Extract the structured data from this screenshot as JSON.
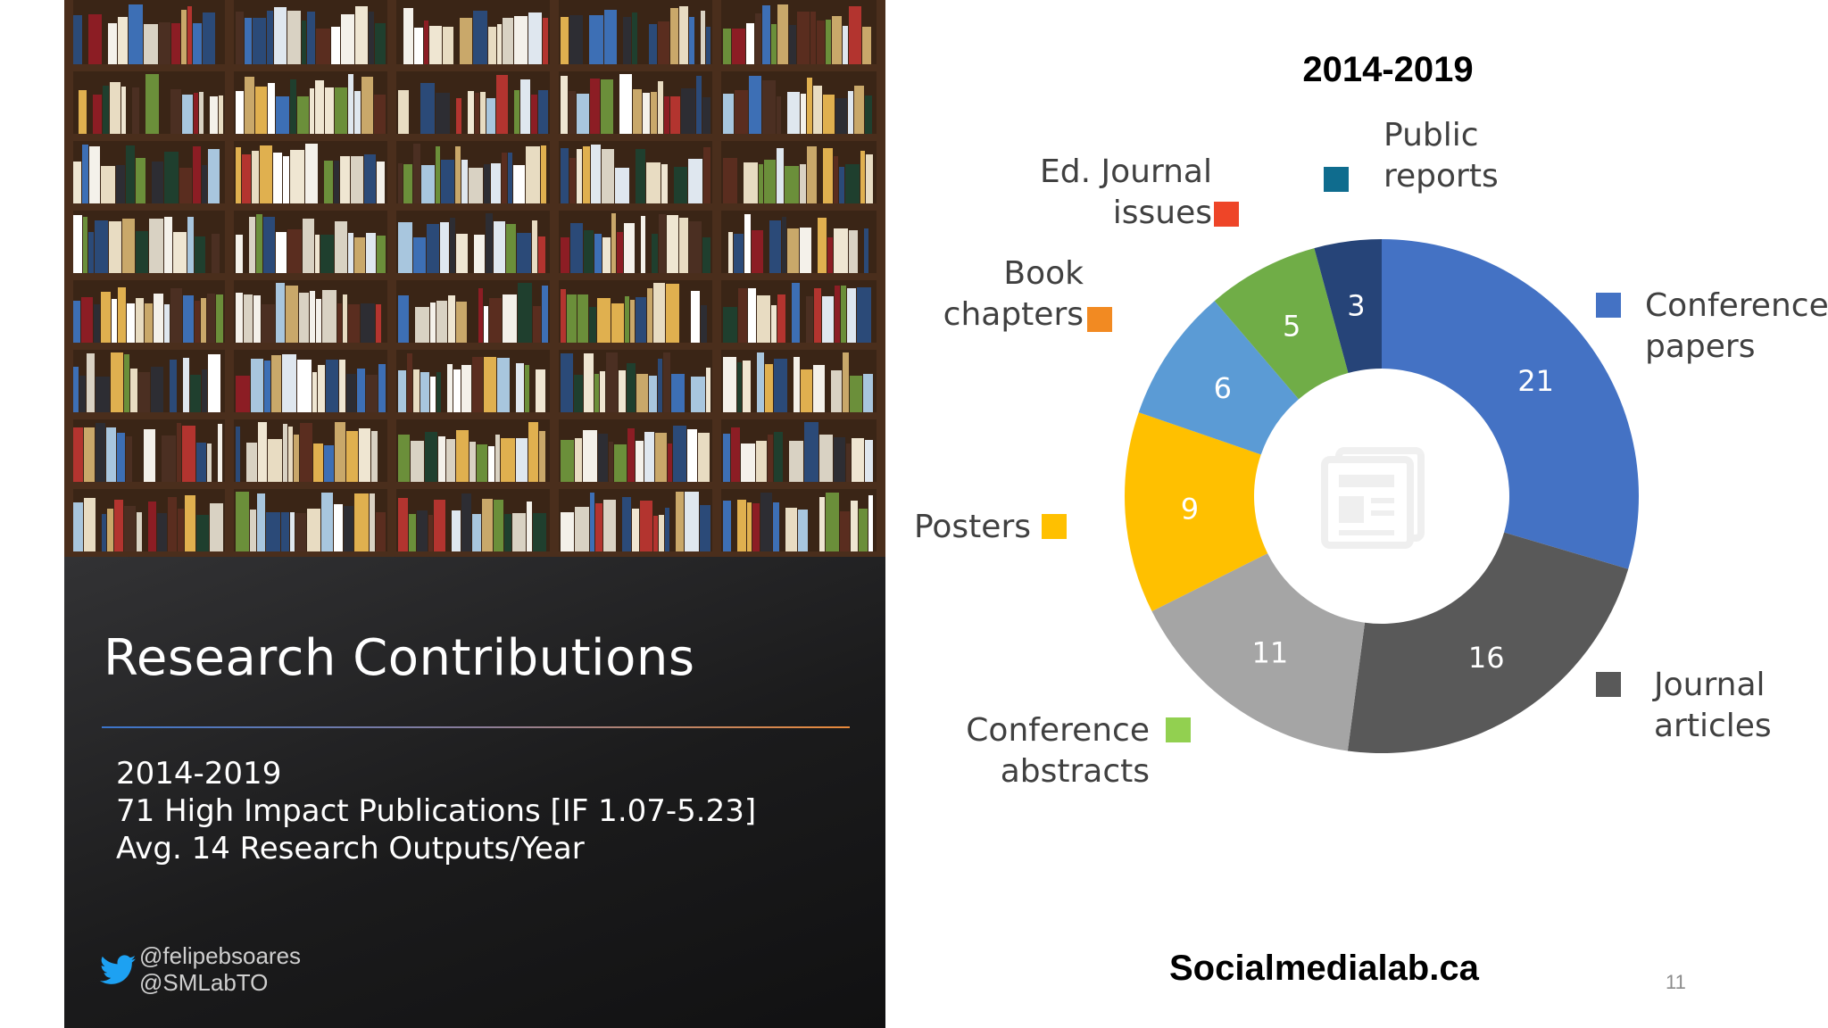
{
  "slide": {
    "title": "Research Contributions",
    "summary": [
      "2014-2019",
      "71 High Impact Publications [IF 1.07-5.23]",
      "Avg. 14 Research Outputs/Year"
    ],
    "social_handles": [
      "@felipebsoares",
      "@SMLabTO"
    ],
    "website": "Socialmedialab.ca",
    "slide_number": "11"
  },
  "chart_data": {
    "type": "pie",
    "title": "2014-2019",
    "legend_placement": "around",
    "series": [
      {
        "name": "Conference papers",
        "label_lines": [
          "Conference",
          "papers"
        ],
        "value": 21,
        "color": "#4472C4",
        "legend_color": "#4472C4"
      },
      {
        "name": "Journal articles",
        "label_lines": [
          "Journal",
          "articles"
        ],
        "value": 16,
        "color": "#595959",
        "legend_color": "#595959"
      },
      {
        "name": "Conference abstracts",
        "label_lines": [
          "Conference",
          "abstracts"
        ],
        "value": 11,
        "color": "#A5A5A5",
        "legend_color": "#92D050"
      },
      {
        "name": "Posters",
        "label_lines": [
          "Posters"
        ],
        "value": 9,
        "color": "#FFC000",
        "legend_color": "#FFC000"
      },
      {
        "name": "Book chapters",
        "label_lines": [
          "Book",
          "chapters"
        ],
        "value": 6,
        "color": "#5B9BD5",
        "legend_color": "#F28A22"
      },
      {
        "name": "Ed. Journal issues",
        "label_lines": [
          "Ed. Journal",
          "issues"
        ],
        "value": 5,
        "color": "#70AD47",
        "legend_color": "#EE4528"
      },
      {
        "name": "Public reports",
        "label_lines": [
          "Public",
          "reports"
        ],
        "value": 3,
        "color": "#264478",
        "legend_color": "#0F6C8E"
      }
    ]
  }
}
